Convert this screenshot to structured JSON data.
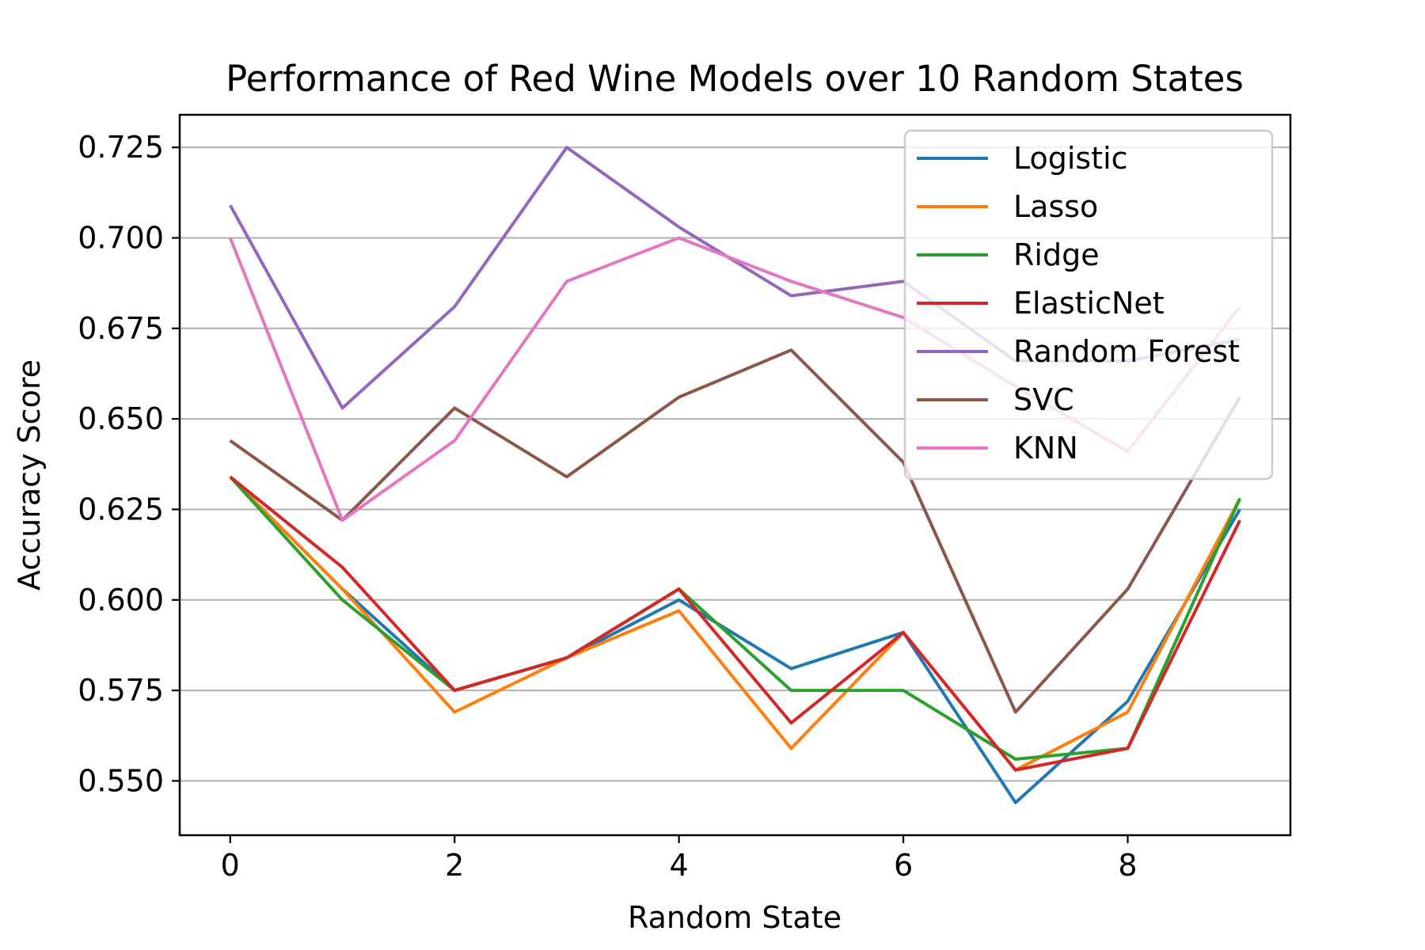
{
  "chart_data": {
    "type": "line",
    "title": "Performance of Red Wine Models over 10 Random States",
    "xlabel": "Random State",
    "ylabel": "Accuracy Score",
    "x": [
      0,
      1,
      2,
      3,
      4,
      5,
      6,
      7,
      8,
      9
    ],
    "xlim": [
      -0.45,
      9.45
    ],
    "ylim": [
      0.535,
      0.734
    ],
    "xticks": [
      0,
      2,
      4,
      6,
      8
    ],
    "xtick_labels": [
      "0",
      "2",
      "4",
      "6",
      "8"
    ],
    "yticks": [
      0.55,
      0.575,
      0.6,
      0.625,
      0.65,
      0.675,
      0.7,
      0.725
    ],
    "ytick_labels": [
      "0.550",
      "0.575",
      "0.600",
      "0.625",
      "0.650",
      "0.675",
      "0.700",
      "0.725"
    ],
    "grid": "y-major",
    "legend_position": "top-right",
    "series": [
      {
        "name": "Logistic",
        "color": "#1f77b4",
        "values": [
          0.634,
          0.603,
          0.575,
          0.584,
          0.6,
          0.581,
          0.591,
          0.544,
          0.572,
          0.625
        ]
      },
      {
        "name": "Lasso",
        "color": "#ff7f0e",
        "values": [
          0.634,
          0.603,
          0.569,
          0.584,
          0.597,
          0.559,
          0.591,
          0.553,
          0.569,
          0.628
        ]
      },
      {
        "name": "Ridge",
        "color": "#2ca02c",
        "values": [
          0.634,
          0.6,
          0.575,
          0.584,
          0.603,
          0.575,
          0.575,
          0.556,
          0.559,
          0.628
        ]
      },
      {
        "name": "ElasticNet",
        "color": "#d62728",
        "values": [
          0.634,
          0.609,
          0.575,
          0.584,
          0.603,
          0.566,
          0.591,
          0.553,
          0.559,
          0.622
        ]
      },
      {
        "name": "Random Forest",
        "color": "#9467bd",
        "values": [
          0.709,
          0.653,
          0.681,
          0.725,
          0.703,
          0.684,
          0.688,
          0.666,
          0.666,
          0.672
        ]
      },
      {
        "name": "SVC",
        "color": "#8c564b",
        "values": [
          0.644,
          0.622,
          0.653,
          0.634,
          0.656,
          0.669,
          0.638,
          0.569,
          0.603,
          0.656
        ]
      },
      {
        "name": "KNN",
        "color": "#e377c2",
        "values": [
          0.7,
          0.622,
          0.644,
          0.688,
          0.7,
          0.688,
          0.678,
          0.659,
          0.641,
          0.681
        ]
      }
    ]
  }
}
